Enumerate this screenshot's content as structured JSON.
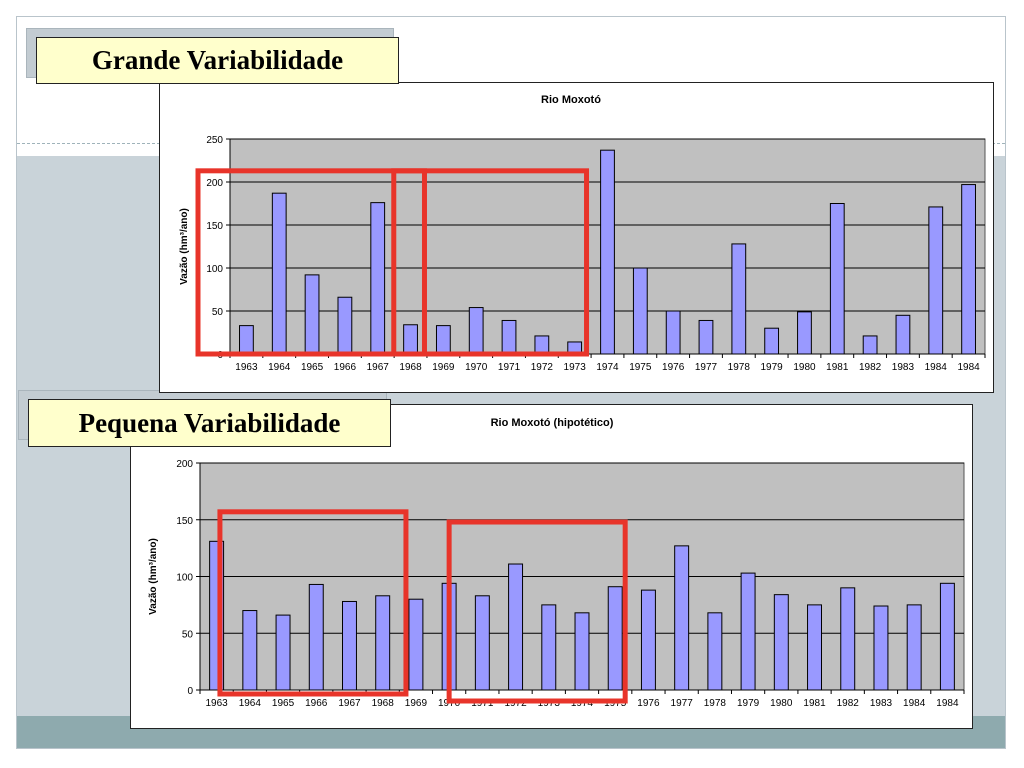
{
  "slide": {
    "label_top": "Grande Variabilidade",
    "label_bottom": "Pequena Variabilidade",
    "colors": {
      "bar_fill": "#9999ff",
      "plot_bg": "#c0c0c0",
      "highlight": "#e8342a",
      "label_bg": "#ffffcc"
    }
  },
  "chart_data": [
    {
      "type": "bar",
      "title": "Rio Moxotó",
      "xlabel": "",
      "ylabel": "Vazão (hm³/ano)",
      "ylim": [
        0,
        250
      ],
      "yticks": [
        0,
        50,
        100,
        150,
        200,
        250
      ],
      "grid": true,
      "legend": "none",
      "categories": [
        "1963",
        "1964",
        "1965",
        "1966",
        "1967",
        "1968",
        "1969",
        "1970",
        "1971",
        "1972",
        "1973",
        "1974",
        "1975",
        "1976",
        "1977",
        "1978",
        "1979",
        "1980",
        "1981",
        "1982",
        "1983",
        "1984",
        "1984"
      ],
      "values": [
        33,
        187,
        92,
        66,
        176,
        34,
        33,
        54,
        39,
        21,
        14,
        237,
        100,
        50,
        39,
        128,
        30,
        49,
        175,
        21,
        45,
        171,
        197
      ]
    },
    {
      "type": "bar",
      "title": "Rio Moxotó (hipotético)",
      "xlabel": "",
      "ylabel": "Vazão (hm³/ano)",
      "ylim": [
        0,
        200
      ],
      "yticks": [
        0,
        50,
        100,
        150,
        200
      ],
      "grid": true,
      "legend": "none",
      "categories": [
        "1963",
        "1964",
        "1965",
        "1966",
        "1967",
        "1968",
        "1969",
        "1970",
        "1971",
        "1972",
        "1973",
        "1974",
        "1975",
        "1976",
        "1977",
        "1978",
        "1979",
        "1980",
        "1981",
        "1982",
        "1983",
        "1984",
        "1984"
      ],
      "values": [
        131,
        70,
        66,
        93,
        78,
        83,
        80,
        94,
        83,
        111,
        75,
        68,
        91,
        88,
        127,
        68,
        103,
        84,
        75,
        90,
        74,
        75,
        94
      ]
    }
  ]
}
